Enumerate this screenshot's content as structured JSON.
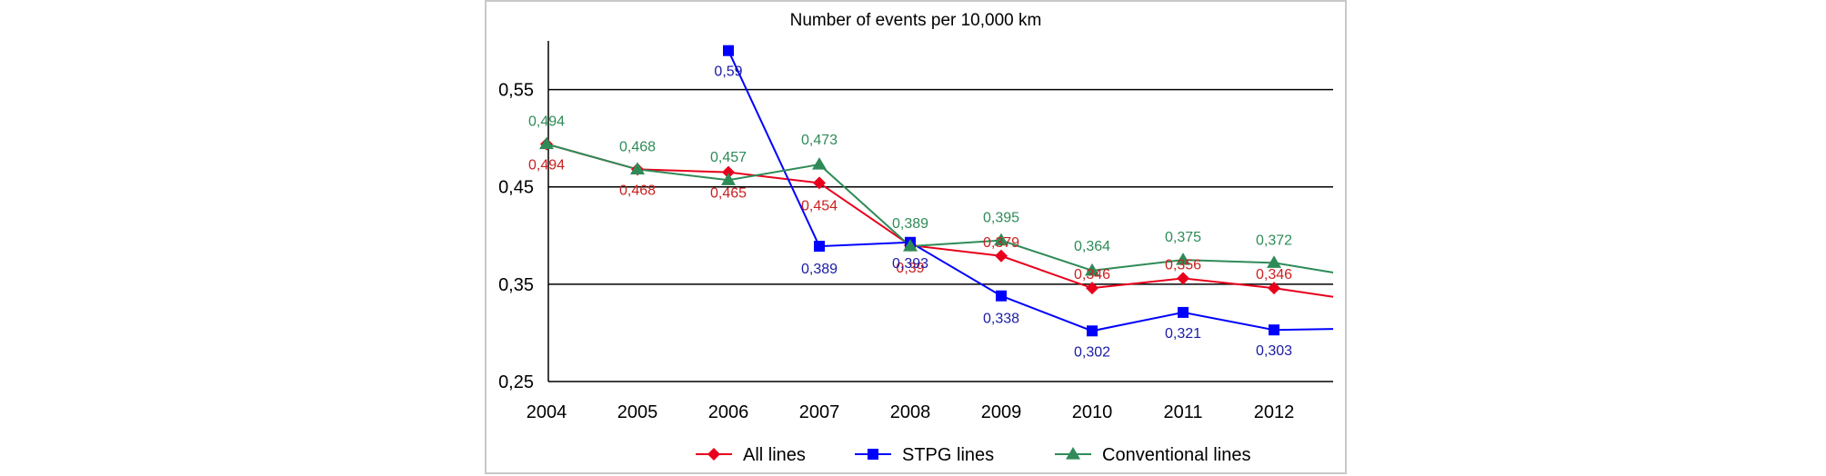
{
  "chart_data": {
    "type": "line",
    "title": "Number of events per 10,000 km",
    "xlabel": "",
    "ylabel": "",
    "categories": [
      "2004",
      "2005",
      "2006",
      "2007",
      "2008",
      "2009",
      "2010",
      "2011",
      "2012"
    ],
    "ylim": [
      0.25,
      0.6
    ],
    "yticks": [
      0.25,
      0.35,
      0.45,
      0.55
    ],
    "ytick_labels": [
      "0,25",
      "0,35",
      "0,45",
      "0,55"
    ],
    "grid": "horizontal",
    "legend_position": "bottom",
    "series": [
      {
        "name": "All lines",
        "color": "#e8001c",
        "label_color": "#cc1f1f",
        "marker": "diamond",
        "values": [
          0.494,
          0.468,
          0.465,
          0.454,
          0.39,
          0.379,
          0.346,
          0.356,
          0.346
        ],
        "labels": [
          "0,494",
          "0,468",
          "0,465",
          "0,454",
          "0,39",
          "0,379",
          "0,346",
          "0,356",
          "0,346"
        ],
        "extension_value": 0.337
      },
      {
        "name": "STPG lines",
        "color": "#0000ff",
        "label_color": "#1a1aa6",
        "marker": "square",
        "values": [
          null,
          null,
          0.59,
          0.389,
          0.393,
          0.338,
          0.302,
          0.321,
          0.303
        ],
        "labels": [
          "",
          "",
          "0,59",
          "0,389",
          "0,393",
          "0,338",
          "0,302",
          "0,321",
          "0,303"
        ],
        "extension_value": 0.304
      },
      {
        "name": "Conventional lines",
        "color": "#2e8b57",
        "label_color": "#2e8b57",
        "marker": "triangle",
        "values": [
          0.494,
          0.468,
          0.457,
          0.473,
          0.389,
          0.395,
          0.364,
          0.375,
          0.372
        ],
        "labels": [
          "0,494",
          "0,468",
          "0,457",
          "0,473",
          "0,389",
          "0,395",
          "0,364",
          "0,375",
          "0,372"
        ],
        "extension_value": 0.362
      }
    ]
  }
}
